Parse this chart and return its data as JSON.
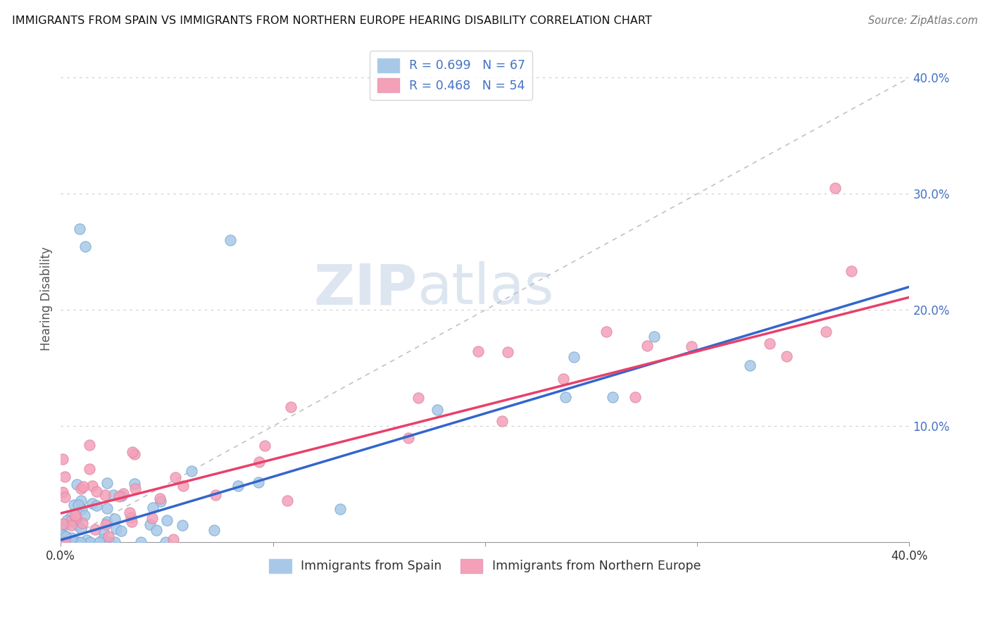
{
  "title": "IMMIGRANTS FROM SPAIN VS IMMIGRANTS FROM NORTHERN EUROPE HEARING DISABILITY CORRELATION CHART",
  "source": "Source: ZipAtlas.com",
  "ylabel": "Hearing Disability",
  "legend1_label": "R = 0.699   N = 67",
  "legend2_label": "R = 0.468   N = 54",
  "legend_bottom_label1": "Immigrants from Spain",
  "legend_bottom_label2": "Immigrants from Northern Europe",
  "color_spain": "#a8c8e8",
  "color_northern": "#f4a0b8",
  "color_trend_spain": "#3366cc",
  "color_trend_northern": "#e8406a",
  "color_ref_line": "#bbbbbb",
  "background_color": "#ffffff",
  "grid_color": "#cccccc",
  "watermark_zip": "ZIP",
  "watermark_atlas": "atlas",
  "xmin": 0.0,
  "xmax": 0.4,
  "ymin": 0.0,
  "ymax": 0.42,
  "trend_spain_slope": 0.545,
  "trend_spain_intercept": 0.002,
  "trend_northern_slope": 0.465,
  "trend_northern_intercept": 0.025
}
